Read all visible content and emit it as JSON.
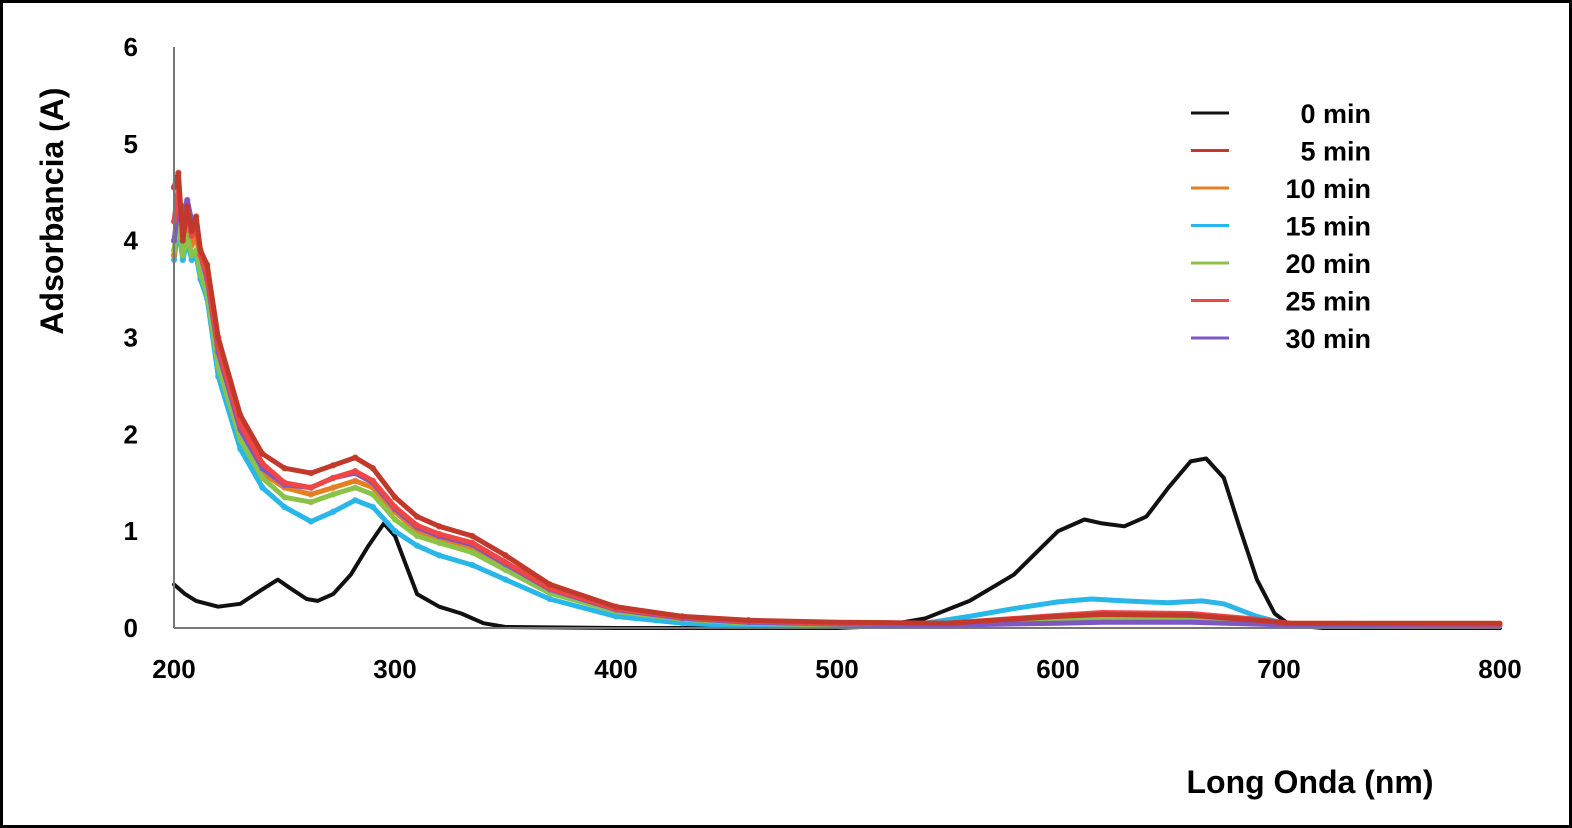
{
  "chart_data": {
    "type": "line",
    "xlabel": "Long Onda (nm)",
    "ylabel": "Adsorbancia (A)",
    "xlim": [
      200,
      800
    ],
    "ylim": [
      0,
      6
    ],
    "x_ticks": [
      "200",
      "300",
      "400",
      "500",
      "600",
      "700",
      "800"
    ],
    "y_ticks": [
      "0",
      "1",
      "2",
      "3",
      "4",
      "5",
      "6"
    ],
    "legend_position": "top-right",
    "grid": false,
    "series": [
      {
        "name": "0 min",
        "color": "#111111",
        "marker": false,
        "points": [
          [
            200,
            0.45
          ],
          [
            205,
            0.35
          ],
          [
            210,
            0.28
          ],
          [
            220,
            0.22
          ],
          [
            230,
            0.25
          ],
          [
            240,
            0.4
          ],
          [
            247,
            0.5
          ],
          [
            252,
            0.42
          ],
          [
            260,
            0.3
          ],
          [
            265,
            0.28
          ],
          [
            272,
            0.35
          ],
          [
            280,
            0.55
          ],
          [
            288,
            0.85
          ],
          [
            295,
            1.08
          ],
          [
            300,
            0.95
          ],
          [
            305,
            0.65
          ],
          [
            310,
            0.35
          ],
          [
            320,
            0.22
          ],
          [
            330,
            0.15
          ],
          [
            340,
            0.05
          ],
          [
            350,
            0.01
          ],
          [
            400,
            0.0
          ],
          [
            500,
            0.0
          ],
          [
            520,
            0.02
          ],
          [
            540,
            0.1
          ],
          [
            560,
            0.28
          ],
          [
            580,
            0.55
          ],
          [
            600,
            1.0
          ],
          [
            612,
            1.12
          ],
          [
            620,
            1.08
          ],
          [
            630,
            1.05
          ],
          [
            640,
            1.15
          ],
          [
            650,
            1.45
          ],
          [
            660,
            1.72
          ],
          [
            667,
            1.75
          ],
          [
            675,
            1.55
          ],
          [
            682,
            1.05
          ],
          [
            690,
            0.5
          ],
          [
            698,
            0.15
          ],
          [
            705,
            0.03
          ],
          [
            720,
            0.0
          ],
          [
            800,
            0.0
          ]
        ]
      },
      {
        "name": "5 min",
        "color": "#c0392b",
        "marker": true,
        "points": [
          [
            200,
            4.55
          ],
          [
            202,
            4.7
          ],
          [
            204,
            4.0
          ],
          [
            206,
            4.35
          ],
          [
            208,
            4.1
          ],
          [
            210,
            4.25
          ],
          [
            212,
            3.9
          ],
          [
            215,
            3.75
          ],
          [
            220,
            3.0
          ],
          [
            230,
            2.2
          ],
          [
            240,
            1.8
          ],
          [
            250,
            1.65
          ],
          [
            262,
            1.6
          ],
          [
            272,
            1.68
          ],
          [
            282,
            1.76
          ],
          [
            290,
            1.65
          ],
          [
            300,
            1.35
          ],
          [
            310,
            1.15
          ],
          [
            320,
            1.05
          ],
          [
            335,
            0.95
          ],
          [
            350,
            0.75
          ],
          [
            370,
            0.45
          ],
          [
            400,
            0.22
          ],
          [
            430,
            0.12
          ],
          [
            460,
            0.08
          ],
          [
            500,
            0.06
          ],
          [
            550,
            0.05
          ],
          [
            600,
            0.12
          ],
          [
            620,
            0.14
          ],
          [
            660,
            0.13
          ],
          [
            690,
            0.08
          ],
          [
            705,
            0.05
          ],
          [
            800,
            0.05
          ]
        ]
      },
      {
        "name": "10 min",
        "color": "#e67e22",
        "marker": true,
        "points": [
          [
            200,
            3.85
          ],
          [
            202,
            4.3
          ],
          [
            204,
            3.9
          ],
          [
            206,
            4.15
          ],
          [
            208,
            3.95
          ],
          [
            210,
            4.05
          ],
          [
            212,
            3.8
          ],
          [
            215,
            3.6
          ],
          [
            220,
            2.8
          ],
          [
            230,
            2.0
          ],
          [
            240,
            1.6
          ],
          [
            250,
            1.45
          ],
          [
            262,
            1.38
          ],
          [
            272,
            1.45
          ],
          [
            282,
            1.52
          ],
          [
            290,
            1.45
          ],
          [
            300,
            1.2
          ],
          [
            310,
            1.0
          ],
          [
            320,
            0.92
          ],
          [
            335,
            0.82
          ],
          [
            350,
            0.63
          ],
          [
            370,
            0.38
          ],
          [
            400,
            0.18
          ],
          [
            430,
            0.1
          ],
          [
            460,
            0.06
          ],
          [
            500,
            0.04
          ],
          [
            550,
            0.04
          ],
          [
            600,
            0.1
          ],
          [
            620,
            0.12
          ],
          [
            660,
            0.11
          ],
          [
            690,
            0.06
          ],
          [
            705,
            0.04
          ],
          [
            800,
            0.04
          ]
        ]
      },
      {
        "name": "15 min",
        "color": "#29b6e8",
        "marker": true,
        "points": [
          [
            200,
            3.8
          ],
          [
            202,
            4.15
          ],
          [
            204,
            3.8
          ],
          [
            206,
            4.0
          ],
          [
            208,
            3.8
          ],
          [
            210,
            3.85
          ],
          [
            212,
            3.6
          ],
          [
            215,
            3.4
          ],
          [
            220,
            2.6
          ],
          [
            230,
            1.85
          ],
          [
            240,
            1.45
          ],
          [
            250,
            1.25
          ],
          [
            262,
            1.1
          ],
          [
            272,
            1.2
          ],
          [
            282,
            1.32
          ],
          [
            290,
            1.25
          ],
          [
            300,
            1.0
          ],
          [
            310,
            0.85
          ],
          [
            320,
            0.75
          ],
          [
            335,
            0.65
          ],
          [
            350,
            0.5
          ],
          [
            370,
            0.3
          ],
          [
            400,
            0.12
          ],
          [
            430,
            0.05
          ],
          [
            460,
            0.02
          ],
          [
            500,
            0.02
          ],
          [
            540,
            0.05
          ],
          [
            560,
            0.12
          ],
          [
            580,
            0.2
          ],
          [
            600,
            0.27
          ],
          [
            615,
            0.3
          ],
          [
            630,
            0.28
          ],
          [
            650,
            0.26
          ],
          [
            665,
            0.28
          ],
          [
            675,
            0.25
          ],
          [
            690,
            0.12
          ],
          [
            705,
            0.03
          ],
          [
            800,
            0.02
          ]
        ]
      },
      {
        "name": "20 min",
        "color": "#8bc34a",
        "marker": true,
        "points": [
          [
            200,
            3.9
          ],
          [
            202,
            4.2
          ],
          [
            204,
            3.85
          ],
          [
            206,
            4.05
          ],
          [
            208,
            3.85
          ],
          [
            210,
            3.9
          ],
          [
            212,
            3.65
          ],
          [
            215,
            3.45
          ],
          [
            220,
            2.7
          ],
          [
            230,
            1.95
          ],
          [
            240,
            1.55
          ],
          [
            250,
            1.35
          ],
          [
            262,
            1.3
          ],
          [
            272,
            1.38
          ],
          [
            282,
            1.45
          ],
          [
            290,
            1.38
          ],
          [
            300,
            1.12
          ],
          [
            310,
            0.95
          ],
          [
            320,
            0.88
          ],
          [
            335,
            0.78
          ],
          [
            350,
            0.6
          ],
          [
            370,
            0.36
          ],
          [
            400,
            0.17
          ],
          [
            430,
            0.09
          ],
          [
            460,
            0.05
          ],
          [
            500,
            0.03
          ],
          [
            550,
            0.03
          ],
          [
            600,
            0.07
          ],
          [
            620,
            0.09
          ],
          [
            660,
            0.08
          ],
          [
            690,
            0.05
          ],
          [
            705,
            0.03
          ],
          [
            800,
            0.03
          ]
        ]
      },
      {
        "name": "25 min",
        "color": "#f04646",
        "marker": true,
        "points": [
          [
            200,
            4.2
          ],
          [
            202,
            4.55
          ],
          [
            204,
            4.05
          ],
          [
            206,
            4.3
          ],
          [
            208,
            4.05
          ],
          [
            210,
            4.15
          ],
          [
            212,
            3.85
          ],
          [
            215,
            3.65
          ],
          [
            220,
            2.9
          ],
          [
            230,
            2.1
          ],
          [
            240,
            1.7
          ],
          [
            250,
            1.5
          ],
          [
            262,
            1.45
          ],
          [
            272,
            1.55
          ],
          [
            282,
            1.62
          ],
          [
            290,
            1.52
          ],
          [
            300,
            1.25
          ],
          [
            310,
            1.06
          ],
          [
            320,
            0.97
          ],
          [
            335,
            0.88
          ],
          [
            350,
            0.68
          ],
          [
            370,
            0.41
          ],
          [
            400,
            0.2
          ],
          [
            430,
            0.11
          ],
          [
            460,
            0.07
          ],
          [
            500,
            0.05
          ],
          [
            550,
            0.05
          ],
          [
            600,
            0.13
          ],
          [
            620,
            0.16
          ],
          [
            660,
            0.15
          ],
          [
            690,
            0.09
          ],
          [
            705,
            0.05
          ],
          [
            800,
            0.04
          ]
        ]
      },
      {
        "name": "30 min",
        "color": "#7e57c2",
        "marker": true,
        "points": [
          [
            200,
            4.0
          ],
          [
            202,
            4.35
          ],
          [
            204,
            4.3
          ],
          [
            206,
            4.42
          ],
          [
            208,
            4.2
          ],
          [
            210,
            4.2
          ],
          [
            212,
            3.85
          ],
          [
            215,
            3.6
          ],
          [
            220,
            2.85
          ],
          [
            230,
            2.05
          ],
          [
            240,
            1.65
          ],
          [
            250,
            1.48
          ],
          [
            262,
            1.45
          ],
          [
            272,
            1.55
          ],
          [
            282,
            1.6
          ],
          [
            290,
            1.5
          ],
          [
            300,
            1.23
          ],
          [
            310,
            1.04
          ],
          [
            320,
            0.95
          ],
          [
            335,
            0.86
          ],
          [
            350,
            0.66
          ],
          [
            370,
            0.4
          ],
          [
            400,
            0.19
          ],
          [
            430,
            0.1
          ],
          [
            460,
            0.06
          ],
          [
            500,
            0.04
          ],
          [
            550,
            0.03
          ],
          [
            600,
            0.05
          ],
          [
            620,
            0.06
          ],
          [
            660,
            0.06
          ],
          [
            690,
            0.04
          ],
          [
            705,
            0.03
          ],
          [
            800,
            0.03
          ]
        ]
      }
    ]
  }
}
